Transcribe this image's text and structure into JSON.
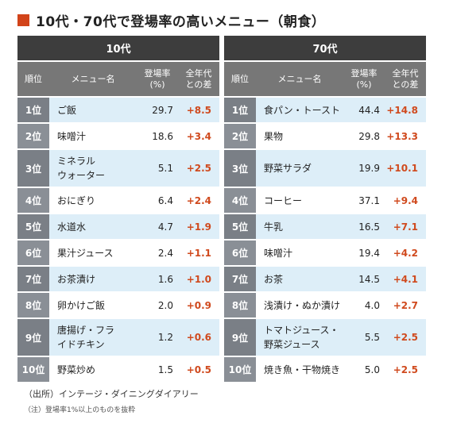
{
  "title": "10代・70代で登場率の高いメニュー（朝食）",
  "accent_color": "#d2441a",
  "chart_data": {
    "type": "table",
    "columns": [
      "順位",
      "メニュー名",
      "登場率\n(%)",
      "全年代\nとの差"
    ],
    "tables": [
      {
        "heading": "10代",
        "rows": [
          {
            "rank": "1位",
            "name": "ご飯",
            "rate": "29.7",
            "diff": "+8.5"
          },
          {
            "rank": "2位",
            "name": "味噌汁",
            "rate": "18.6",
            "diff": "+3.4"
          },
          {
            "rank": "3位",
            "name": "ミネラル\nウォーター",
            "rate": "5.1",
            "diff": "+2.5"
          },
          {
            "rank": "4位",
            "name": "おにぎり",
            "rate": "6.4",
            "diff": "+2.4"
          },
          {
            "rank": "5位",
            "name": "水道水",
            "rate": "4.7",
            "diff": "+1.9"
          },
          {
            "rank": "6位",
            "name": "果汁ジュース",
            "rate": "2.4",
            "diff": "+1.1"
          },
          {
            "rank": "7位",
            "name": "お茶漬け",
            "rate": "1.6",
            "diff": "+1.0"
          },
          {
            "rank": "8位",
            "name": "卵かけご飯",
            "rate": "2.0",
            "diff": "+0.9"
          },
          {
            "rank": "9位",
            "name": "唐揚げ・フラ\nイドチキン",
            "rate": "1.2",
            "diff": "+0.6"
          },
          {
            "rank": "10位",
            "name": "野菜炒め",
            "rate": "1.5",
            "diff": "+0.5"
          }
        ]
      },
      {
        "heading": "70代",
        "rows": [
          {
            "rank": "1位",
            "name": "食パン・トースト",
            "rate": "44.4",
            "diff": "+14.8"
          },
          {
            "rank": "2位",
            "name": "果物",
            "rate": "29.8",
            "diff": "+13.3"
          },
          {
            "rank": "3位",
            "name": "野菜サラダ",
            "rate": "19.9",
            "diff": "+10.1"
          },
          {
            "rank": "4位",
            "name": "コーヒー",
            "rate": "37.1",
            "diff": "+9.4"
          },
          {
            "rank": "5位",
            "name": "牛乳",
            "rate": "16.5",
            "diff": "+7.1"
          },
          {
            "rank": "6位",
            "name": "味噌汁",
            "rate": "19.4",
            "diff": "+4.2"
          },
          {
            "rank": "7位",
            "name": "お茶",
            "rate": "14.5",
            "diff": "+4.1"
          },
          {
            "rank": "8位",
            "name": "浅漬け・ぬか漬け",
            "rate": "4.0",
            "diff": "+2.7"
          },
          {
            "rank": "9位",
            "name": "トマトジュース・\n野菜ジュース",
            "rate": "5.5",
            "diff": "+2.5"
          },
          {
            "rank": "10位",
            "name": "焼き魚・干物焼き",
            "rate": "5.0",
            "diff": "+2.5"
          }
        ]
      }
    ]
  },
  "source": "（出所）インテージ・ダイニングダイアリー",
  "note": "（注）登場率1%以上のものを抜粋"
}
